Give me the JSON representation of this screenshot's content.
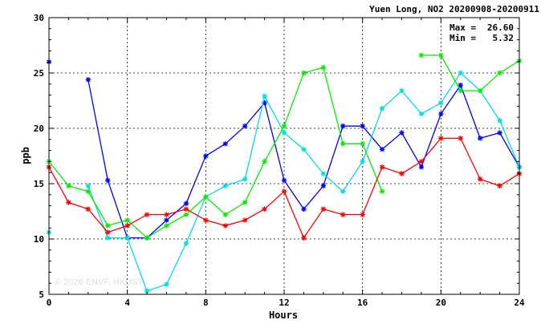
{
  "chart_data": {
    "type": "line",
    "title": "Yuen Long, NO2 20200908-20200911",
    "xlabel": "Hours",
    "ylabel": "ppb",
    "xlim": [
      0,
      24
    ],
    "ylim": [
      5,
      30
    ],
    "x_ticks": [
      0,
      4,
      8,
      12,
      16,
      20,
      24
    ],
    "y_ticks": [
      5,
      10,
      15,
      20,
      25,
      30
    ],
    "grid": true,
    "x": [
      0,
      1,
      2,
      3,
      4,
      5,
      6,
      7,
      8,
      9,
      10,
      11,
      12,
      13,
      14,
      15,
      16,
      17,
      18,
      19,
      20,
      21,
      22,
      23,
      24
    ],
    "stats": {
      "max_label": "Max =",
      "max_value": "26.60",
      "min_label": "Min =",
      "min_value": " 5.32"
    },
    "watermark": "© 2026 ENVF, HKUST",
    "series": [
      {
        "color": "#0000ff",
        "values": [
          26.0,
          null,
          24.4,
          15.3,
          10.1,
          10.1,
          11.7,
          13.2,
          17.5,
          18.6,
          20.2,
          22.3,
          15.3,
          12.7,
          14.8,
          20.2,
          20.2,
          18.1,
          19.6,
          16.5,
          21.3,
          23.9,
          19.1,
          19.6,
          16.5
        ]
      },
      {
        "color": "#00dddd",
        "values": [
          10.6,
          null,
          14.8,
          10.1,
          10.1,
          5.3,
          5.9,
          9.6,
          13.8,
          14.8,
          15.4,
          22.9,
          19.6,
          18.1,
          15.9,
          14.3,
          17.0,
          21.8,
          23.4,
          21.3,
          22.3,
          25.0,
          23.4,
          20.7,
          16.5
        ]
      },
      {
        "color": "#00ee00",
        "values": [
          17.0,
          14.8,
          14.3,
          11.2,
          11.7,
          10.1,
          11.2,
          12.2,
          13.8,
          12.2,
          13.3,
          17.0,
          20.2,
          25.0,
          25.5,
          18.6,
          18.6,
          14.3,
          null,
          26.6,
          26.6,
          23.4,
          23.4,
          25.0,
          26.1
        ]
      },
      {
        "color": "#ff0000",
        "values": [
          16.5,
          13.3,
          12.7,
          10.6,
          11.2,
          12.2,
          12.2,
          12.7,
          11.7,
          11.2,
          11.7,
          12.7,
          14.3,
          10.1,
          12.7,
          12.2,
          12.2,
          16.5,
          15.9,
          17.0,
          19.1,
          19.1,
          15.4,
          14.8,
          15.9
        ]
      }
    ]
  }
}
